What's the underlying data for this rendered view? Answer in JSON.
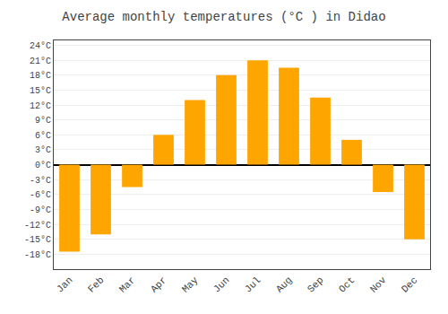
{
  "chart_data": {
    "type": "bar",
    "title": "Average monthly temperatures (°C ) in Didao",
    "categories": [
      "Jan",
      "Feb",
      "Mar",
      "Apr",
      "May",
      "Jun",
      "Jul",
      "Aug",
      "Sep",
      "Oct",
      "Nov",
      "Dec"
    ],
    "values": [
      -17.5,
      -14.0,
      -4.5,
      6.0,
      13.0,
      18.0,
      21.0,
      19.5,
      13.5,
      5.0,
      -5.5,
      -15.0
    ],
    "color": "#FFA500",
    "ylim": [
      -21,
      25
    ],
    "yticks": [
      {
        "value": -18,
        "label": "-18°C"
      },
      {
        "value": -15,
        "label": "-15°C"
      },
      {
        "value": -12,
        "label": "-12°C"
      },
      {
        "value": -9,
        "label": "-9°C"
      },
      {
        "value": -6,
        "label": "-6°C"
      },
      {
        "value": -3,
        "label": "-3°C"
      },
      {
        "value": 0,
        "label": "0°C"
      },
      {
        "value": 3,
        "label": "3°C"
      },
      {
        "value": 6,
        "label": "6°C"
      },
      {
        "value": 9,
        "label": "9°C"
      },
      {
        "value": 12,
        "label": "12°C"
      },
      {
        "value": 15,
        "label": "15°C"
      },
      {
        "value": 18,
        "label": "18°C"
      },
      {
        "value": 21,
        "label": "21°C"
      },
      {
        "value": 24,
        "label": "24°C"
      }
    ],
    "grid": true
  }
}
